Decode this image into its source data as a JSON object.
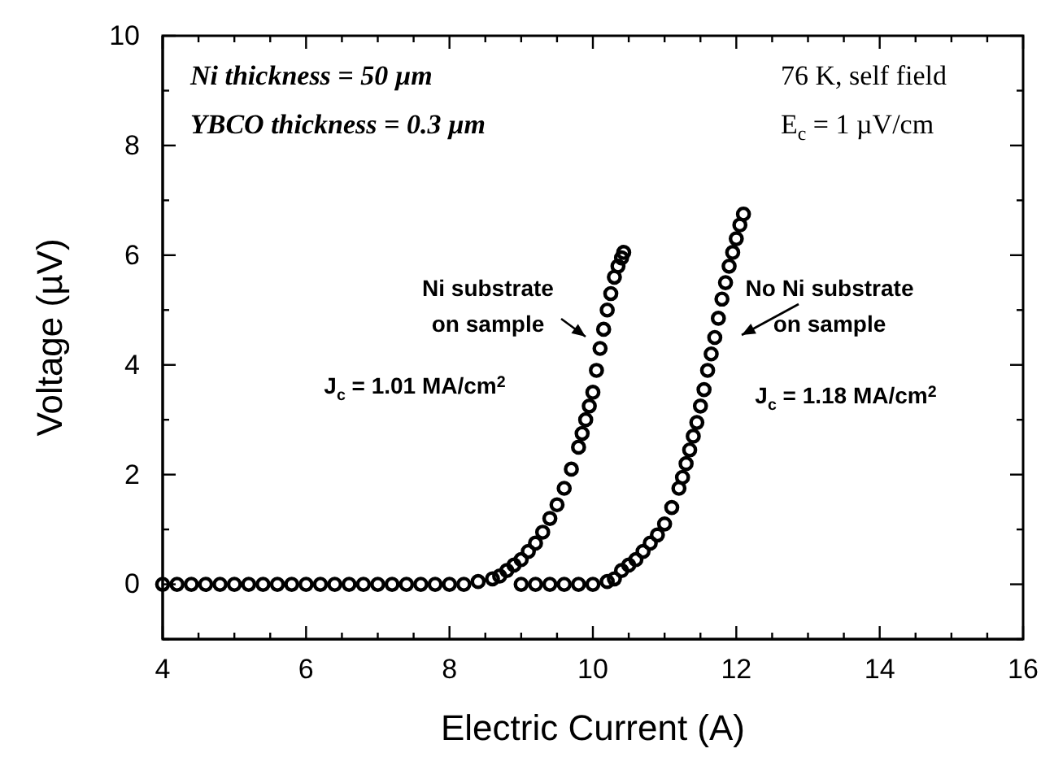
{
  "chart_data": {
    "type": "scatter",
    "xlabel": "Electric Current (A)",
    "ylabel": "Voltage (µV)",
    "xlim": [
      4,
      16
    ],
    "ylim": [
      -1,
      10
    ],
    "xticks": [
      4,
      {
        "value": 4.5,
        "label": null
      },
      {
        "value": 5,
        "label": null
      },
      {
        "value": 5.5,
        "label": null
      },
      6,
      {
        "value": 6.5,
        "label": null
      },
      {
        "value": 7,
        "label": null
      },
      {
        "value": 7.5,
        "label": null
      },
      8,
      {
        "value": 8.5,
        "label": null
      },
      {
        "value": 9,
        "label": null
      },
      {
        "value": 9.5,
        "label": null
      },
      10,
      {
        "value": 10.5,
        "label": null
      },
      {
        "value": 11,
        "label": null
      },
      {
        "value": 11.5,
        "label": null
      },
      12,
      {
        "value": 12.5,
        "label": null
      },
      {
        "value": 13,
        "label": null
      },
      {
        "value": 13.5,
        "label": null
      },
      14,
      {
        "value": 14.5,
        "label": null
      },
      {
        "value": 15,
        "label": null
      },
      {
        "value": 15.5,
        "label": null
      },
      16
    ],
    "yticks": [
      {
        "value": -1,
        "label": null
      },
      0,
      {
        "value": 1,
        "label": null
      },
      2,
      {
        "value": 3,
        "label": null
      },
      4,
      {
        "value": 5,
        "label": null
      },
      6,
      {
        "value": 7,
        "label": null
      },
      8,
      {
        "value": 9,
        "label": null
      },
      10
    ],
    "grid": false,
    "marker": "circle",
    "series": [
      {
        "name": "Ni substrate on sample",
        "color": "#000000",
        "x": [
          4.0,
          4.2,
          4.4,
          4.6,
          4.8,
          5.0,
          5.2,
          5.4,
          5.6,
          5.8,
          6.0,
          6.2,
          6.4,
          6.6,
          6.8,
          7.0,
          7.2,
          7.4,
          7.6,
          7.8,
          8.0,
          8.2,
          8.4,
          8.6,
          8.7,
          8.8,
          8.9,
          9.0,
          9.1,
          9.2,
          9.3,
          9.4,
          9.5,
          9.6,
          9.7,
          9.8,
          9.85,
          9.9,
          9.95,
          10.0,
          10.05,
          10.1,
          10.15,
          10.2,
          10.25,
          10.3,
          10.35,
          10.4,
          10.43
        ],
        "values": [
          0,
          0,
          0,
          0,
          0,
          0,
          0,
          0,
          0,
          0,
          0,
          0,
          0,
          0,
          0,
          0,
          0,
          0,
          0,
          0,
          0,
          0,
          0.05,
          0.1,
          0.15,
          0.25,
          0.35,
          0.45,
          0.6,
          0.75,
          0.95,
          1.2,
          1.45,
          1.75,
          2.1,
          2.5,
          2.75,
          3.0,
          3.25,
          3.5,
          3.9,
          4.3,
          4.65,
          5.0,
          5.3,
          5.6,
          5.8,
          5.95,
          6.05
        ]
      },
      {
        "name": "No Ni substrate on sample",
        "color": "#000000",
        "x": [
          9.0,
          9.2,
          9.4,
          9.6,
          9.8,
          10.0,
          10.2,
          10.3,
          10.4,
          10.5,
          10.6,
          10.7,
          10.8,
          10.9,
          11.0,
          11.1,
          11.2,
          11.25,
          11.3,
          11.35,
          11.4,
          11.45,
          11.5,
          11.55,
          11.6,
          11.65,
          11.7,
          11.75,
          11.8,
          11.85,
          11.9,
          11.95,
          12.0,
          12.05,
          12.1
        ],
        "values": [
          0,
          0,
          0,
          0,
          0,
          0,
          0.05,
          0.1,
          0.25,
          0.35,
          0.45,
          0.6,
          0.75,
          0.9,
          1.1,
          1.4,
          1.75,
          1.95,
          2.2,
          2.45,
          2.7,
          2.95,
          3.25,
          3.55,
          3.9,
          4.2,
          4.5,
          4.85,
          5.2,
          5.5,
          5.8,
          6.05,
          6.3,
          6.55,
          6.75
        ]
      }
    ],
    "annotations": [
      "Ni thickness = 50 µm",
      "YBCO thickness = 0.3 µm",
      "76 K, self field",
      "E$_{c}$ = 1 µV/cm",
      "J$_{c}$ = 1.01 MA/cm$^{2}$",
      "J$_{c}$ = 1.18 MA/cm$^{2}$"
    ]
  }
}
